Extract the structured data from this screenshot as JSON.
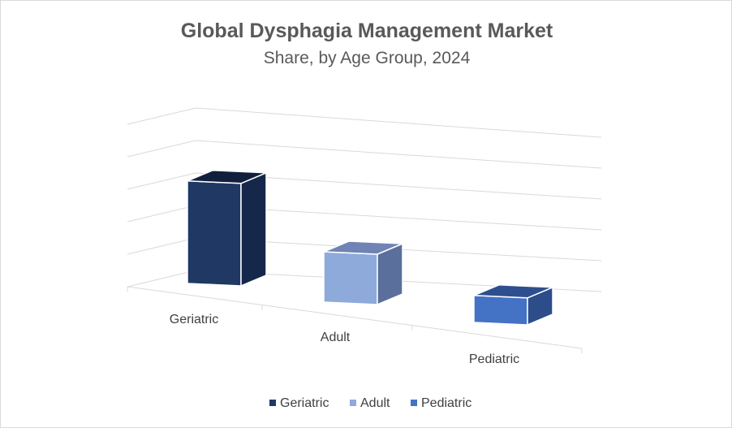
{
  "chart_data": {
    "type": "bar",
    "title": "Global Dysphagia Management Market",
    "subtitle": "Share, by Age Group, 2024",
    "categories": [
      "Geriatric",
      "Adult",
      "Pediatric"
    ],
    "series": [
      {
        "name": "Geriatric",
        "values": [
          57,
          0,
          0
        ]
      },
      {
        "name": "Adult",
        "values": [
          0,
          28,
          0
        ]
      },
      {
        "name": "Pediatric",
        "values": [
          0,
          0,
          15
        ]
      }
    ],
    "ylim": [
      0,
      70
    ],
    "grid": true,
    "legend": "bottom",
    "colors": {
      "Geriatric": {
        "front": "#1f3864",
        "side": "#15274a",
        "top": "#111f3d"
      },
      "Adult": {
        "front": "#8eaadb",
        "side": "#5b6f9c",
        "top": "#6f83b5"
      },
      "Pediatric": {
        "front": "#4472c4",
        "side": "#2c4d8a",
        "top": "#2e4f8f"
      }
    }
  }
}
